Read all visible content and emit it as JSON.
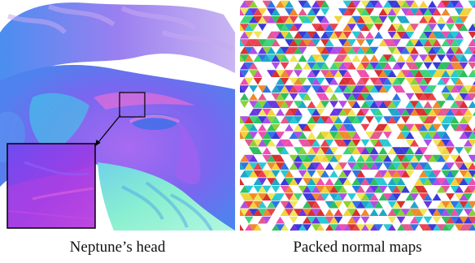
{
  "figure": {
    "left_caption": "Neptune’s head",
    "right_caption": "Packed normal maps"
  },
  "colors": {
    "background": "#ffffff",
    "head_blue": "#4c7ff0",
    "head_magenta": "#d24fe0",
    "head_cyan": "#38e6d0",
    "head_violet": "#8a5cf2",
    "inset_border": "#000000",
    "triangle_palette": [
      "#e9434f",
      "#f3d23c",
      "#3fd37a",
      "#2f74e6",
      "#b04ee6",
      "#28c9d4",
      "#f08a2c",
      "#ee4fb0",
      "#8bd13a",
      "#3a3ad8",
      "#d93030",
      "#2fbf5d",
      "#6a36e0",
      "#f0e65a",
      "#1fa7c9",
      "#e35a8f"
    ]
  }
}
